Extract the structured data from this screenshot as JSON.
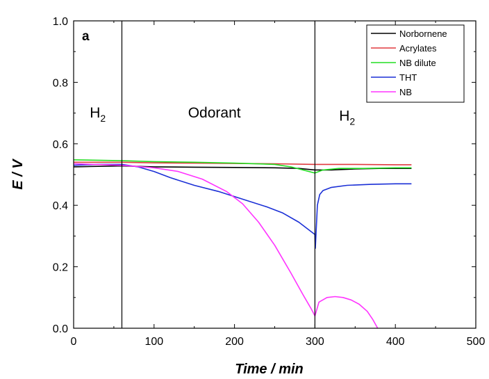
{
  "chart_data": {
    "type": "line",
    "panel_label": "a",
    "xlabel": "Time / min",
    "ylabel": "E / V",
    "xlim": [
      0,
      500
    ],
    "ylim": [
      0.0,
      1.0
    ],
    "x_ticks": [
      "0",
      "100",
      "200",
      "300",
      "400",
      "500"
    ],
    "y_ticks": [
      "0.0",
      "0.2",
      "0.4",
      "0.6",
      "0.8",
      "1.0"
    ],
    "x_tick_values": [
      0,
      100,
      200,
      300,
      400,
      500
    ],
    "y_tick_values": [
      0.0,
      0.2,
      0.4,
      0.6,
      0.8,
      1.0
    ],
    "grid": false,
    "legend_position": "top-right",
    "phase_boundaries": [
      60,
      300
    ],
    "regions": [
      {
        "label": "H",
        "subscript": "2",
        "x": 30,
        "y": 0.685
      },
      {
        "label": "Odorant",
        "x": 175,
        "y": 0.685
      },
      {
        "label": "H",
        "subscript": "2",
        "x": 340,
        "y": 0.675
      }
    ],
    "series": [
      {
        "name": "Norbornene",
        "color": "#000000",
        "x": [
          0,
          60,
          100,
          150,
          200,
          250,
          280,
          300,
          320,
          350,
          380,
          400,
          420
        ],
        "y": [
          0.525,
          0.528,
          0.525,
          0.524,
          0.523,
          0.522,
          0.52,
          0.515,
          0.515,
          0.518,
          0.52,
          0.52,
          0.52
        ]
      },
      {
        "name": "Acrylates",
        "color": "#e0393e",
        "x": [
          0,
          60,
          100,
          150,
          200,
          250,
          300,
          350,
          400,
          420
        ],
        "y": [
          0.54,
          0.54,
          0.538,
          0.537,
          0.536,
          0.535,
          0.533,
          0.533,
          0.532,
          0.532
        ]
      },
      {
        "name": "NB dilute",
        "color": "#22dd22",
        "x": [
          0,
          60,
          100,
          150,
          200,
          250,
          270,
          285,
          300,
          310,
          330,
          360,
          400,
          420
        ],
        "y": [
          0.548,
          0.545,
          0.542,
          0.54,
          0.537,
          0.533,
          0.525,
          0.515,
          0.505,
          0.515,
          0.52,
          0.52,
          0.522,
          0.522
        ]
      },
      {
        "name": "THT",
        "color": "#1a2fd6",
        "x": [
          0,
          30,
          60,
          80,
          100,
          120,
          150,
          180,
          210,
          240,
          260,
          280,
          290,
          300,
          300.5,
          303,
          306,
          310,
          320,
          340,
          370,
          400,
          420
        ],
        "y": [
          0.53,
          0.533,
          0.533,
          0.525,
          0.51,
          0.49,
          0.465,
          0.445,
          0.42,
          0.395,
          0.375,
          0.345,
          0.325,
          0.305,
          0.26,
          0.4,
          0.435,
          0.448,
          0.458,
          0.465,
          0.468,
          0.47,
          0.47
        ]
      },
      {
        "name": "NB",
        "color": "#ff33ff",
        "x": [
          0,
          60,
          100,
          130,
          160,
          190,
          210,
          230,
          250,
          270,
          285,
          295,
          300,
          305,
          315,
          325,
          335,
          345,
          355,
          365,
          372,
          378
        ],
        "y": [
          0.535,
          0.53,
          0.522,
          0.51,
          0.485,
          0.445,
          0.405,
          0.345,
          0.27,
          0.18,
          0.11,
          0.065,
          0.04,
          0.085,
          0.1,
          0.103,
          0.1,
          0.092,
          0.078,
          0.055,
          0.028,
          0.0
        ]
      }
    ]
  }
}
